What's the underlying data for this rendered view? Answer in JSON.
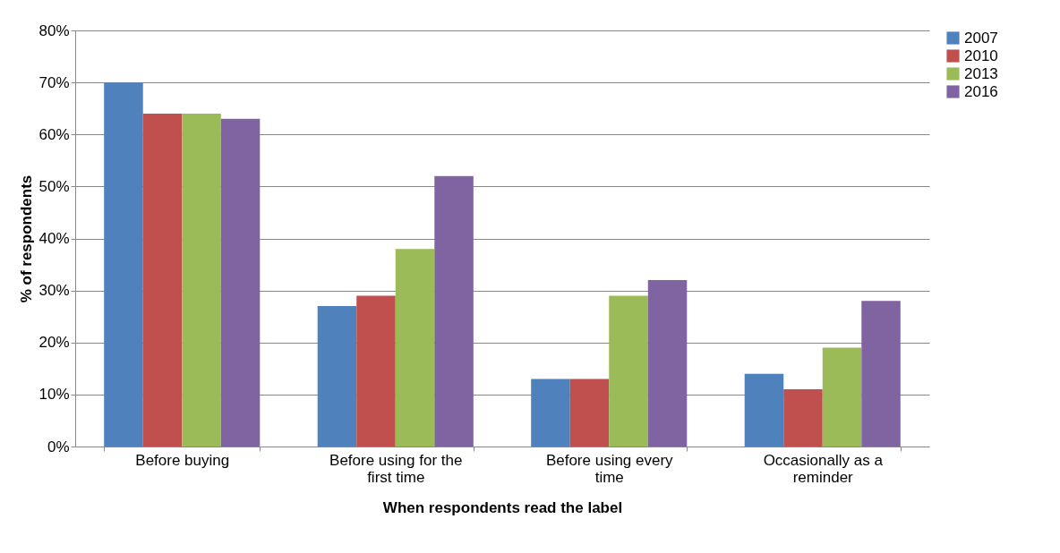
{
  "chart_data": {
    "type": "bar",
    "xlabel": "When respondents read the label",
    "ylabel": "% of respondents",
    "categories": [
      "Before buying",
      "Before using for the first time",
      "Before using every time",
      "Occasionally as a reminder"
    ],
    "series": [
      {
        "name": "2007",
        "color": "#4f81bd",
        "values": [
          70,
          27,
          13,
          14
        ]
      },
      {
        "name": "2010",
        "color": "#c0504d",
        "values": [
          64,
          29,
          13,
          11
        ]
      },
      {
        "name": "2013",
        "color": "#9bbb59",
        "values": [
          64,
          38,
          29,
          19
        ]
      },
      {
        "name": "2016",
        "color": "#8064a2",
        "values": [
          63,
          52,
          32,
          28
        ]
      }
    ],
    "ylim": [
      0,
      80
    ],
    "yticks": [
      {
        "value": 0,
        "label": "0%"
      },
      {
        "value": 10,
        "label": "10%"
      },
      {
        "value": 20,
        "label": "20%"
      },
      {
        "value": 30,
        "label": "30%"
      },
      {
        "value": 40,
        "label": "40%"
      },
      {
        "value": 50,
        "label": "50%"
      },
      {
        "value": 60,
        "label": "60%"
      },
      {
        "value": 70,
        "label": "70%"
      },
      {
        "value": 80,
        "label": "80%"
      }
    ],
    "grid": "y",
    "legend": "right"
  }
}
